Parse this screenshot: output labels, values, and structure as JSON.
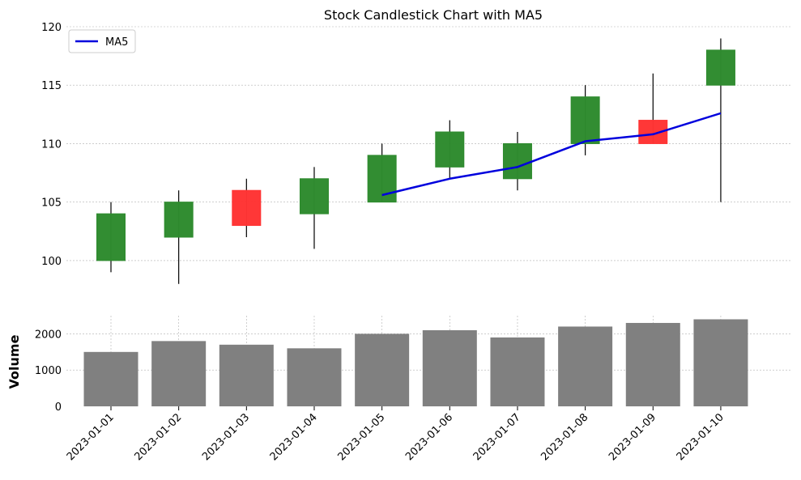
{
  "chart_data": [
    {
      "type": "candlestick",
      "title": "Stock Candlestick Chart with MA5",
      "xlabel": "",
      "ylabel": "",
      "ylim": [
        97.5,
        120
      ],
      "yticks": [
        100,
        105,
        110,
        115,
        120
      ],
      "grid": true,
      "legend": {
        "placement": "top-left",
        "entries": [
          "MA5"
        ]
      },
      "categories": [
        "2023-01-01",
        "2023-01-02",
        "2023-01-03",
        "2023-01-04",
        "2023-01-05",
        "2023-01-06",
        "2023-01-07",
        "2023-01-08",
        "2023-01-09",
        "2023-01-10"
      ],
      "ohlc": [
        {
          "open": 100,
          "high": 105,
          "low": 99,
          "close": 104
        },
        {
          "open": 102,
          "high": 106,
          "low": 98,
          "close": 105
        },
        {
          "open": 106,
          "high": 107,
          "low": 102,
          "close": 103
        },
        {
          "open": 104,
          "high": 108,
          "low": 101,
          "close": 107
        },
        {
          "open": 105,
          "high": 110,
          "low": 105,
          "close": 109
        },
        {
          "open": 108,
          "high": 112,
          "low": 107,
          "close": 111
        },
        {
          "open": 107,
          "high": 111,
          "low": 106,
          "close": 110
        },
        {
          "open": 110,
          "high": 115,
          "low": 109,
          "close": 114
        },
        {
          "open": 112,
          "high": 116,
          "low": 110,
          "close": 110
        },
        {
          "open": 115,
          "high": 119,
          "low": 105,
          "close": 118
        }
      ],
      "series": [
        {
          "name": "MA5",
          "values": [
            null,
            null,
            null,
            null,
            105.6,
            107.0,
            108.0,
            110.2,
            110.8,
            112.6
          ]
        }
      ],
      "colors": {
        "up": "#2e8b2e",
        "down": "#ff3333",
        "wick": "#000000",
        "ma": "#0000dd",
        "grid": "#b0b0b0"
      }
    },
    {
      "type": "bar",
      "ylabel": "Volume",
      "ylim": [
        0,
        2500
      ],
      "yticks": [
        0,
        1000,
        2000
      ],
      "grid": true,
      "categories": [
        "2023-01-01",
        "2023-01-02",
        "2023-01-03",
        "2023-01-04",
        "2023-01-05",
        "2023-01-06",
        "2023-01-07",
        "2023-01-08",
        "2023-01-09",
        "2023-01-10"
      ],
      "values": [
        1500,
        1800,
        1700,
        1600,
        2000,
        2100,
        1900,
        2200,
        2300,
        2400
      ],
      "colors": {
        "bar": "#808080"
      }
    }
  ]
}
